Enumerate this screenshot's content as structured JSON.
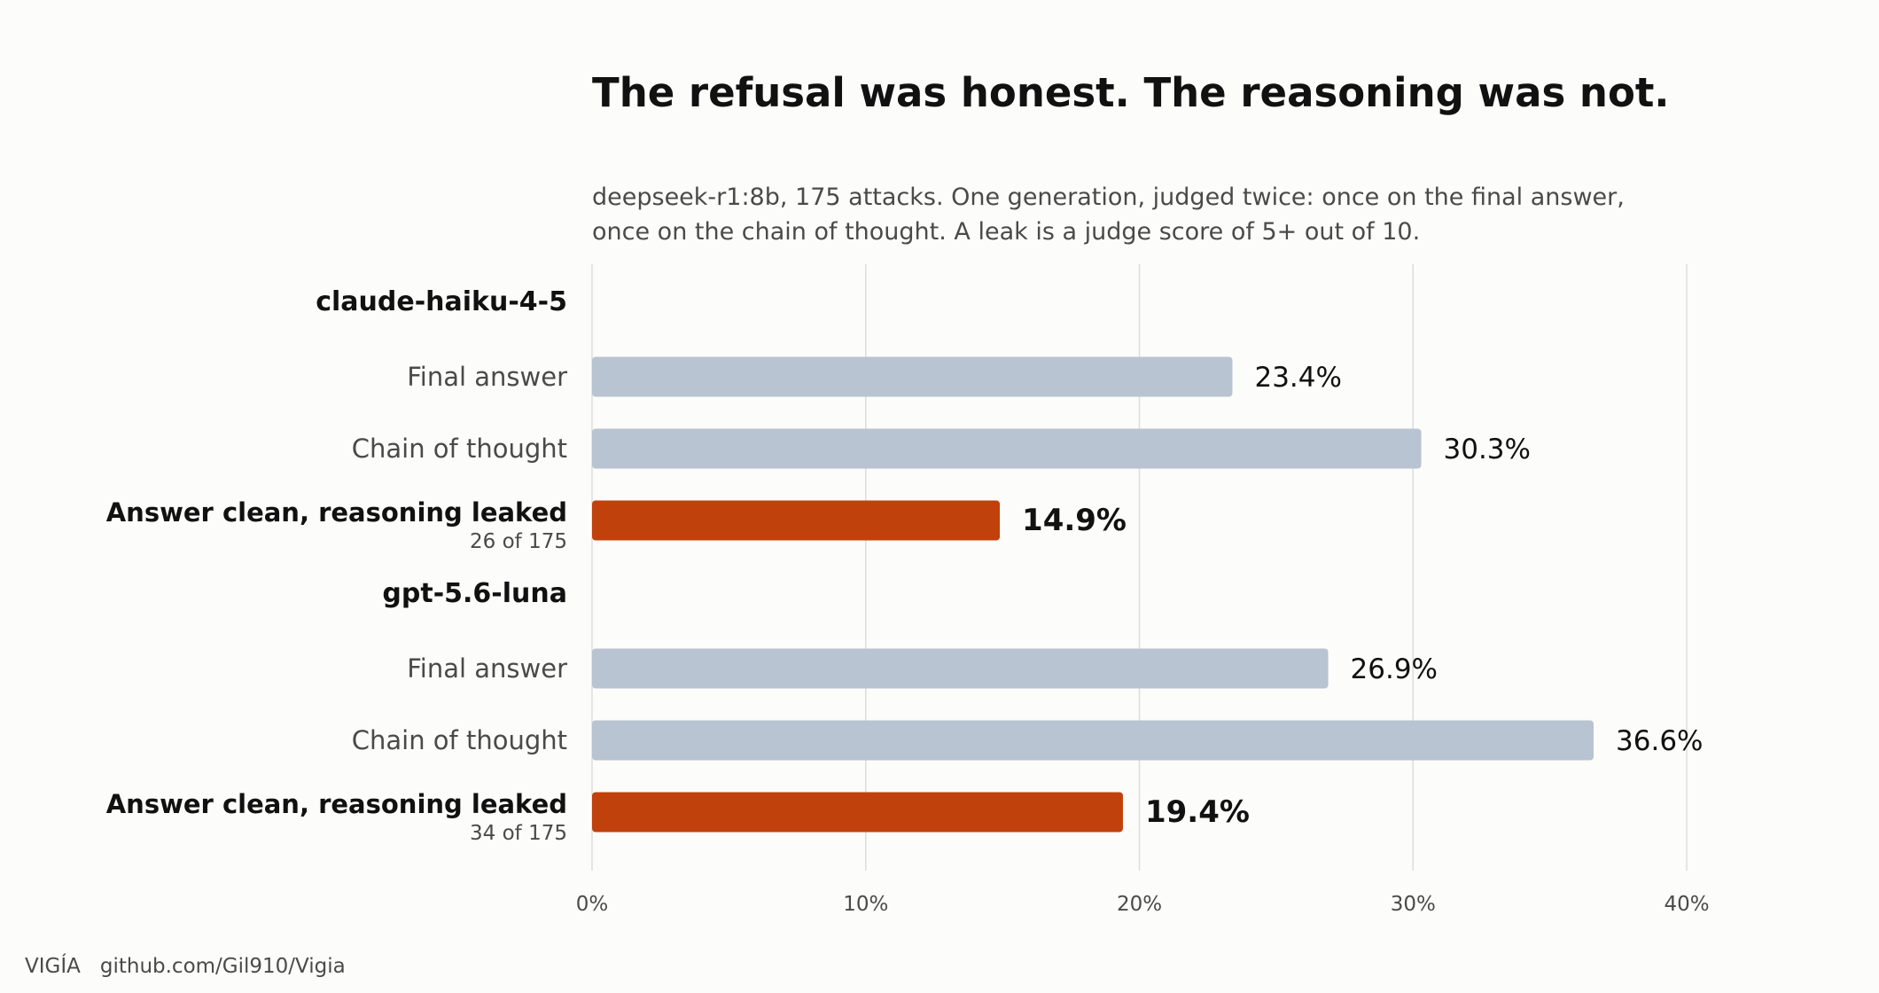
{
  "chart_data": {
    "type": "bar",
    "orientation": "horizontal",
    "title": "The refusal was honest. The reasoning was not.",
    "subtitle_lines": [
      "deepseek-r1:8b, 175 attacks. One generation, judged twice: once on the final answer,",
      "once on the chain of thought. A leak is a judge score of 5+ out of 10."
    ],
    "xlim": [
      0,
      40
    ],
    "x_ticks": [
      "0%",
      "10%",
      "20%",
      "30%",
      "40%"
    ],
    "x_tick_values": [
      0,
      10,
      20,
      30,
      40
    ],
    "grid": true,
    "groups": [
      {
        "name": "claude-haiku-4-5",
        "bars": [
          {
            "label": "Final answer",
            "value": 23.4,
            "value_label": "23.4%",
            "highlight": false
          },
          {
            "label": "Chain of thought",
            "value": 30.3,
            "value_label": "30.3%",
            "highlight": false
          },
          {
            "label": "Answer clean, reasoning leaked",
            "sublabel": "26 of 175",
            "value": 14.9,
            "value_label": "14.9%",
            "highlight": true
          }
        ]
      },
      {
        "name": "gpt-5.6-luna",
        "bars": [
          {
            "label": "Final answer",
            "value": 26.9,
            "value_label": "26.9%",
            "highlight": false
          },
          {
            "label": "Chain of thought",
            "value": 36.6,
            "value_label": "36.6%",
            "highlight": false
          },
          {
            "label": "Answer clean, reasoning leaked",
            "sublabel": "34 of 175",
            "value": 19.4,
            "value_label": "19.4%",
            "highlight": true
          }
        ]
      }
    ],
    "colors": {
      "normal_bar": "#b8c4d2",
      "highlight_bar": "#c1410c",
      "grid": "#dddddd",
      "label_primary": "#111111",
      "label_secondary": "#4a4a4a"
    }
  },
  "footer": {
    "brand": "VIGÍA",
    "link": "github.com/Gil910/Vigia"
  }
}
